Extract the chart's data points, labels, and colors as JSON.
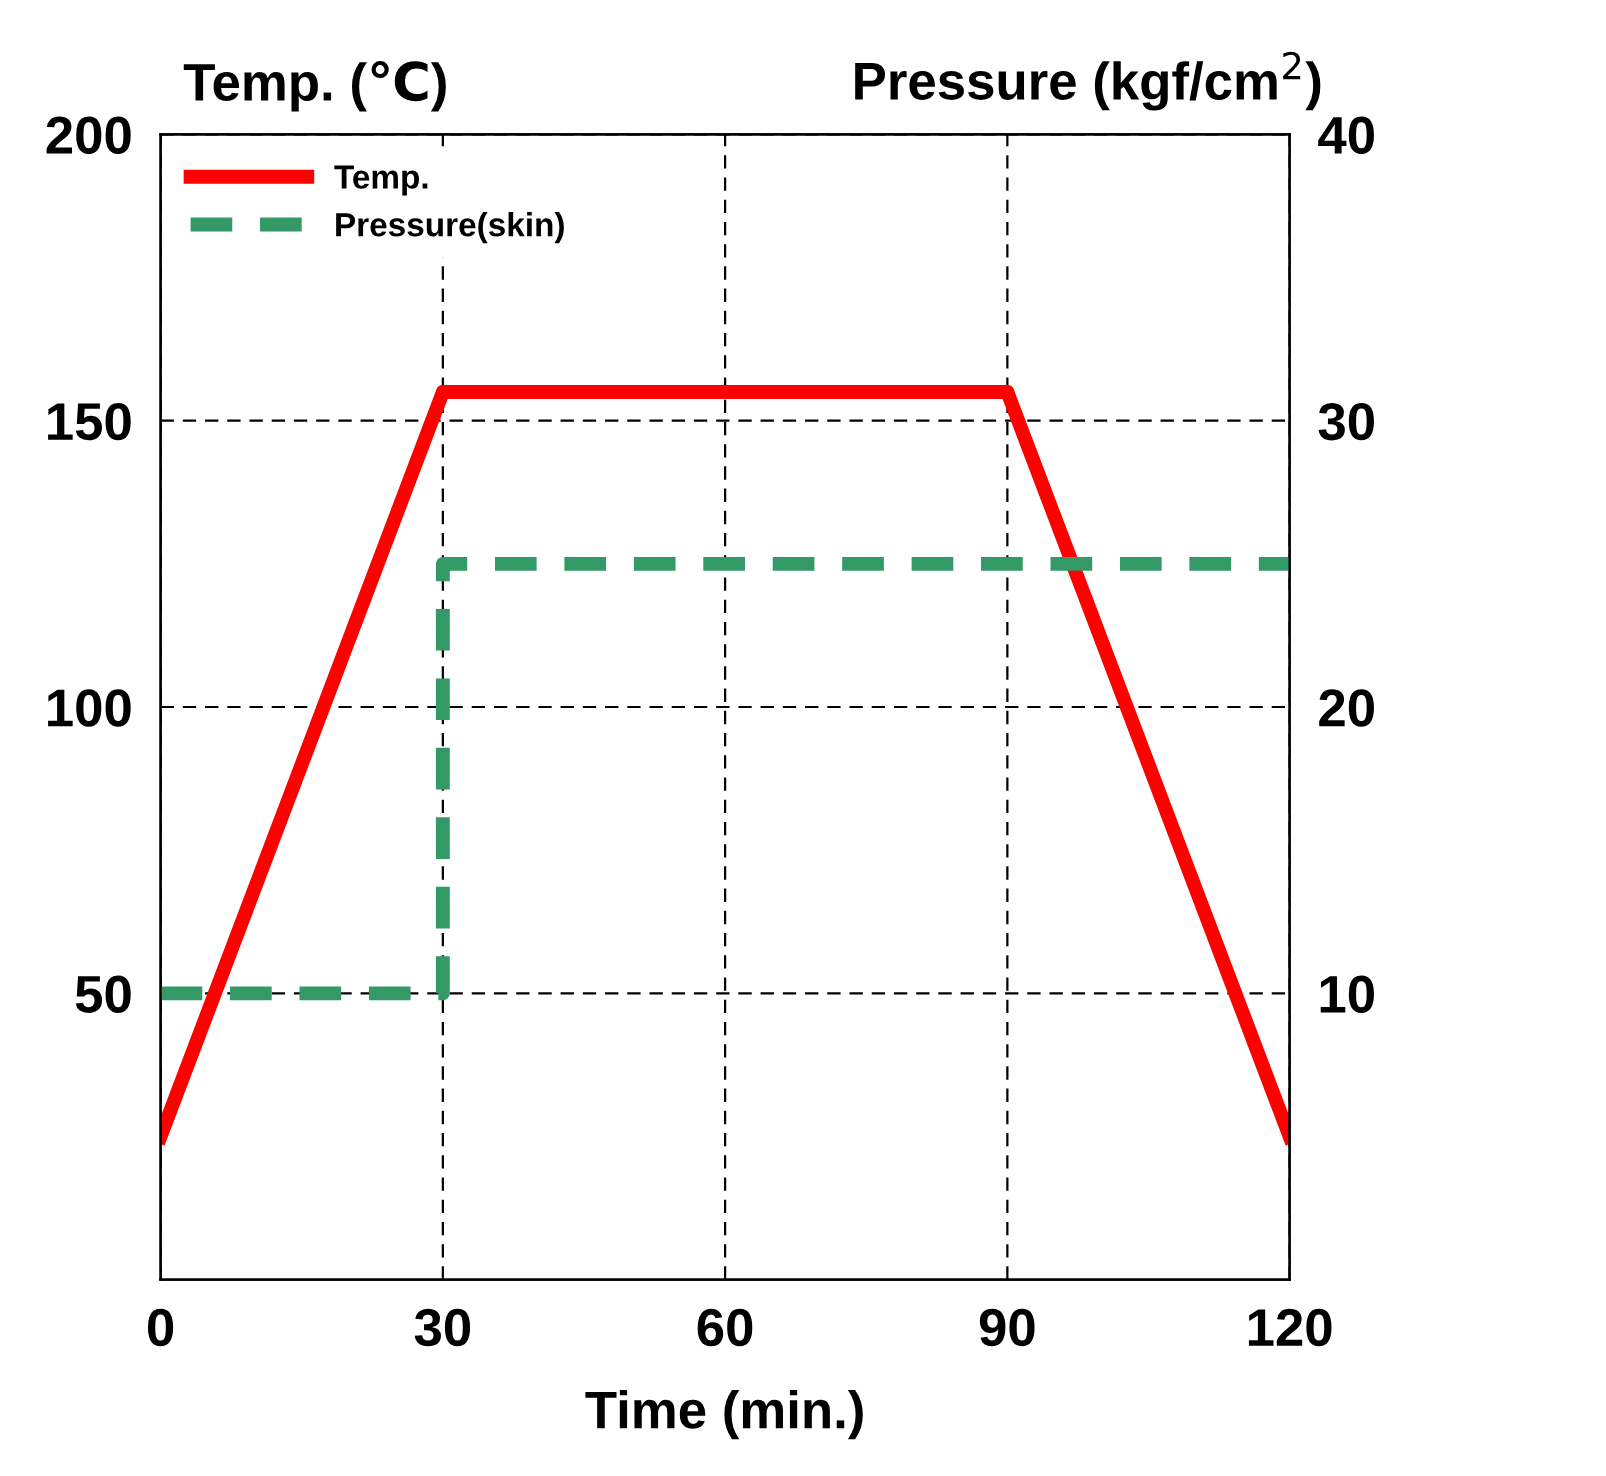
{
  "chart_data": {
    "type": "line",
    "xlabel": "Time (min.)",
    "ylabel": "Temp. (℃)",
    "y2label": "Pressure (kgf/cm$^{2}$)",
    "xlim": [
      0,
      120
    ],
    "xticks": [
      0,
      30,
      60,
      90,
      120
    ],
    "ylim": [
      0,
      200
    ],
    "yticks": [
      50,
      100,
      150,
      200
    ],
    "y2lim": [
      0,
      40
    ],
    "y2ticks": [
      10,
      20,
      30,
      40
    ],
    "grid": true,
    "legend": "top left",
    "marker": "none",
    "series": [
      {
        "name": "Temp.",
        "color": "#ff0000",
        "line_style": "solid",
        "x": [
          0,
          30,
          90,
          120
        ],
        "values": [
          25,
          155,
          155,
          25
        ]
      },
      {
        "name": "Pressure(skin)",
        "color": "#339966",
        "type": "step",
        "axis": "y2",
        "line_style": "dashed",
        "x": [
          0,
          30,
          120
        ],
        "values": [
          10,
          25,
          25
        ]
      }
    ]
  }
}
